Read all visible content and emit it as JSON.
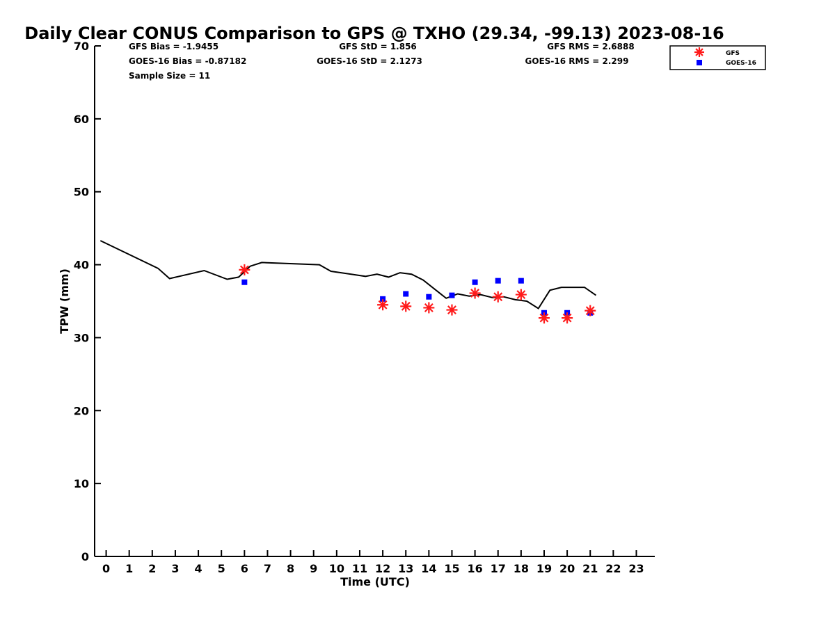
{
  "chart_data": {
    "type": "scatter",
    "title": "Daily Clear CONUS Comparison to GPS @ TXHO (29.34, -99.13) 2023-08-16",
    "xlabel": "Time (UTC)",
    "ylabel": "TPW (mm)",
    "xlim": [
      -0.5,
      23.8
    ],
    "ylim": [
      0,
      70
    ],
    "x_ticks": [
      "0",
      "1",
      "2",
      "3",
      "4",
      "5",
      "6",
      "7",
      "8",
      "9",
      "10",
      "11",
      "12",
      "13",
      "14",
      "15",
      "16",
      "17",
      "18",
      "19",
      "20",
      "21",
      "22",
      "23"
    ],
    "y_ticks": [
      "0",
      "10",
      "20",
      "30",
      "40",
      "50",
      "60",
      "70"
    ],
    "grid": false,
    "legend_position": "top-right",
    "stats": {
      "gfs_bias": "GFS Bias = -1.9455",
      "goes_bias": "GOES-16 Bias = -0.87182",
      "sample_size": "Sample Size = 11",
      "gfs_std": "GFS StD = 1.856",
      "goes_std": "GOES-16 StD = 2.1273",
      "gfs_rms": "GFS RMS = 2.6888",
      "goes_rms": "GOES-16 RMS = 2.299"
    },
    "series": [
      {
        "name": "",
        "kind": "line",
        "color": "#000000",
        "x": [
          -0.25,
          2.25,
          2.75,
          4.25,
          5.25,
          5.75,
          6.25,
          6.75,
          9.25,
          9.75,
          11.25,
          11.75,
          12.25,
          12.75,
          13.25,
          13.75,
          14.75,
          15.25,
          15.75,
          16.25,
          16.75,
          17.25,
          17.75,
          18.25,
          18.75,
          19.25,
          19.75,
          20.25,
          20.75,
          21.25
        ],
        "y": [
          43.3,
          39.5,
          38.1,
          39.2,
          38.0,
          38.3,
          39.8,
          40.3,
          40.0,
          39.1,
          38.4,
          38.7,
          38.3,
          38.9,
          38.7,
          37.9,
          35.4,
          36.0,
          35.7,
          35.9,
          35.5,
          35.6,
          35.2,
          35.0,
          34.0,
          36.5,
          36.9,
          36.9,
          36.9,
          35.8
        ]
      },
      {
        "name": "GFS",
        "kind": "asterisk",
        "color": "#ff1a1a",
        "x": [
          6,
          12,
          13,
          14,
          15,
          16,
          17,
          18,
          19,
          20,
          21
        ],
        "y": [
          39.3,
          34.5,
          34.3,
          34.1,
          33.8,
          36.1,
          35.6,
          35.9,
          32.7,
          32.7,
          33.7
        ]
      },
      {
        "name": "GOES-16",
        "kind": "square",
        "color": "#0000ff",
        "x": [
          6,
          12,
          13,
          14,
          15,
          16,
          17,
          18,
          19,
          20,
          21
        ],
        "y": [
          37.6,
          35.3,
          36.0,
          35.6,
          35.8,
          37.6,
          37.8,
          37.8,
          33.4,
          33.4,
          33.4
        ]
      }
    ]
  }
}
